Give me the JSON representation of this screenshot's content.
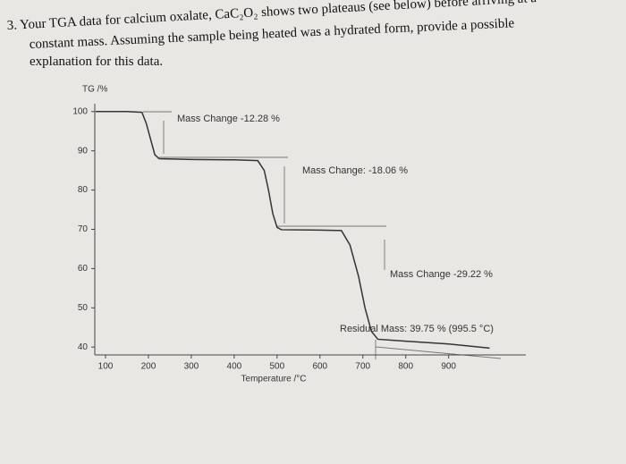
{
  "question": {
    "lines": [
      "3.  Your TGA data for calcium oxalate, CaC₂O₂ shows two plateaus (see below) before arriving at a",
      "constant mass.  Assuming the sample being heated was a hydrated form, provide a possible",
      "explanation for this data."
    ]
  },
  "chart_data": {
    "type": "line",
    "y_label": "TG /%",
    "x_label": "Temperature /°C",
    "annotations": [
      "Mass Change -12.28 %",
      "Mass Change: -18.06 %",
      "Mass Change -29.22 %",
      "Residual Mass: 39.75 % (995.5 °C)"
    ],
    "series": [
      {
        "name": "TG",
        "color": "#333333",
        "x": [
          77,
          150,
          185,
          195,
          205,
          215,
          225,
          300,
          400,
          455,
          470,
          480,
          490,
          500,
          510,
          600,
          650,
          670,
          690,
          705,
          720,
          735,
          800,
          900,
          995.5
        ],
        "values": [
          100,
          100,
          99.8,
          97,
          93,
          89,
          88,
          87.8,
          87.7,
          87.5,
          85,
          80,
          74,
          70.5,
          69.9,
          69.8,
          69.7,
          66,
          58,
          50,
          44,
          42,
          41.5,
          40.8,
          39.75
        ]
      }
    ],
    "xlim": [
      75,
      1080
    ],
    "xticks": [
      100,
      200,
      300,
      400,
      500,
      600,
      700,
      800,
      900
    ],
    "ylim": [
      38,
      102
    ],
    "yticks": [
      40,
      50,
      60,
      70,
      80,
      90,
      100
    ]
  }
}
